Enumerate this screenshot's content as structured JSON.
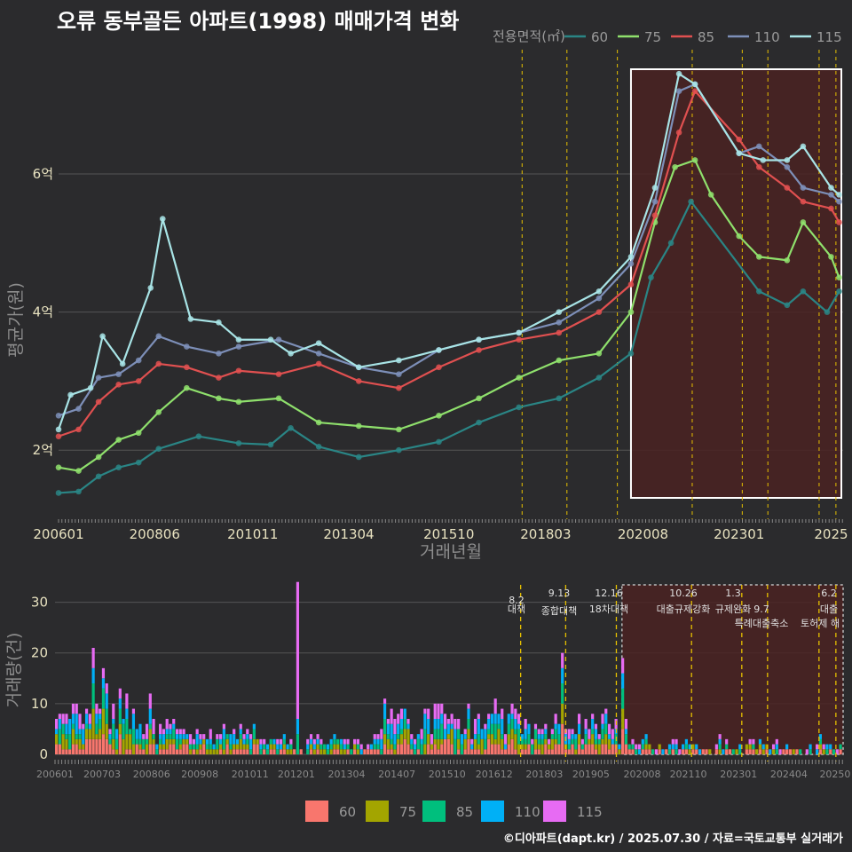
{
  "title": "오류 동부골든 아파트(1998) 매매가격 변화",
  "footer": "©디아파트(dapt.kr) / 2025.07.30 / 자료=국토교통부 실거래가",
  "colors": {
    "s60": "#2a8585",
    "s75": "#8fe06c",
    "s85": "#e05050",
    "s110": "#7d8fb8",
    "s115": "#a8e4e6",
    "b60": "#f8766d",
    "b75": "#a3a500",
    "b85": "#00bf7d",
    "b110": "#00b0f6",
    "b115": "#e76bf3",
    "policy": "#e6c000",
    "highlight": "#4a2222"
  },
  "chart_data": [
    {
      "type": "line",
      "xlabel": "거래년월",
      "ylabel": "평균가(원)",
      "x_ticks": [
        "200601",
        "200806",
        "201011",
        "201304",
        "201510",
        "201803",
        "202008",
        "202301",
        "2025"
      ],
      "y_ticks": [
        {
          "value": 2,
          "label": "2억"
        },
        {
          "value": 4,
          "label": "4억"
        },
        {
          "value": 6,
          "label": "6억"
        }
      ],
      "ylim": [
        1.0,
        7.8
      ],
      "legend_title": "전용면적(㎡)",
      "legend_placement": "top",
      "series": [
        {
          "name": "60",
          "points": [
            [
              2006.0,
              1.38
            ],
            [
              2006.5,
              1.4
            ],
            [
              2007.0,
              1.62
            ],
            [
              2007.5,
              1.75
            ],
            [
              2008.0,
              1.82
            ],
            [
              2008.5,
              2.02
            ],
            [
              2009.5,
              2.2
            ],
            [
              2010.5,
              2.1
            ],
            [
              2011.3,
              2.08
            ],
            [
              2011.8,
              2.32
            ],
            [
              2012.5,
              2.05
            ],
            [
              2013.5,
              1.9
            ],
            [
              2014.5,
              2.0
            ],
            [
              2015.5,
              2.12
            ],
            [
              2016.5,
              2.4
            ],
            [
              2017.5,
              2.62
            ],
            [
              2018.5,
              2.75
            ],
            [
              2019.5,
              3.05
            ],
            [
              2020.3,
              3.4
            ],
            [
              2020.8,
              4.5
            ],
            [
              2021.3,
              5.0
            ],
            [
              2021.8,
              5.6
            ],
            [
              2023.5,
              4.3
            ],
            [
              2024.2,
              4.1
            ],
            [
              2024.6,
              4.3
            ],
            [
              2025.2,
              4.0
            ],
            [
              2025.5,
              4.3
            ]
          ]
        },
        {
          "name": "75",
          "points": [
            [
              2006.0,
              1.75
            ],
            [
              2006.5,
              1.7
            ],
            [
              2007.0,
              1.9
            ],
            [
              2007.5,
              2.15
            ],
            [
              2008.0,
              2.25
            ],
            [
              2008.5,
              2.55
            ],
            [
              2009.2,
              2.9
            ],
            [
              2010.0,
              2.75
            ],
            [
              2010.5,
              2.7
            ],
            [
              2011.5,
              2.75
            ],
            [
              2012.5,
              2.4
            ],
            [
              2013.5,
              2.35
            ],
            [
              2014.5,
              2.3
            ],
            [
              2015.5,
              2.5
            ],
            [
              2016.5,
              2.75
            ],
            [
              2017.5,
              3.05
            ],
            [
              2018.5,
              3.3
            ],
            [
              2019.5,
              3.4
            ],
            [
              2020.3,
              4.0
            ],
            [
              2020.9,
              5.3
            ],
            [
              2021.4,
              6.1
            ],
            [
              2021.9,
              6.2
            ],
            [
              2022.3,
              5.7
            ],
            [
              2023.0,
              5.1
            ],
            [
              2023.5,
              4.8
            ],
            [
              2024.2,
              4.75
            ],
            [
              2024.6,
              5.3
            ],
            [
              2025.3,
              4.8
            ],
            [
              2025.5,
              4.5
            ]
          ]
        },
        {
          "name": "85",
          "points": [
            [
              2006.0,
              2.2
            ],
            [
              2006.5,
              2.3
            ],
            [
              2007.0,
              2.7
            ],
            [
              2007.5,
              2.95
            ],
            [
              2008.0,
              3.0
            ],
            [
              2008.5,
              3.25
            ],
            [
              2009.2,
              3.2
            ],
            [
              2010.0,
              3.05
            ],
            [
              2010.5,
              3.15
            ],
            [
              2011.5,
              3.1
            ],
            [
              2012.5,
              3.25
            ],
            [
              2013.5,
              3.0
            ],
            [
              2014.5,
              2.9
            ],
            [
              2015.5,
              3.2
            ],
            [
              2016.5,
              3.45
            ],
            [
              2017.5,
              3.6
            ],
            [
              2018.5,
              3.7
            ],
            [
              2019.5,
              4.0
            ],
            [
              2020.3,
              4.4
            ],
            [
              2020.9,
              5.4
            ],
            [
              2021.5,
              6.6
            ],
            [
              2021.9,
              7.2
            ],
            [
              2023.0,
              6.5
            ],
            [
              2023.5,
              6.1
            ],
            [
              2024.2,
              5.8
            ],
            [
              2024.6,
              5.6
            ],
            [
              2025.3,
              5.5
            ],
            [
              2025.5,
              5.3
            ]
          ]
        },
        {
          "name": "110",
          "points": [
            [
              2006.0,
              2.5
            ],
            [
              2006.5,
              2.6
            ],
            [
              2007.0,
              3.05
            ],
            [
              2007.5,
              3.1
            ],
            [
              2008.0,
              3.3
            ],
            [
              2008.5,
              3.65
            ],
            [
              2009.2,
              3.5
            ],
            [
              2010.0,
              3.4
            ],
            [
              2010.5,
              3.5
            ],
            [
              2011.5,
              3.6
            ],
            [
              2012.5,
              3.4
            ],
            [
              2013.5,
              3.2
            ],
            [
              2014.5,
              3.1
            ],
            [
              2015.5,
              3.45
            ],
            [
              2016.5,
              3.6
            ],
            [
              2017.5,
              3.7
            ],
            [
              2018.5,
              3.85
            ],
            [
              2019.5,
              4.2
            ],
            [
              2020.3,
              4.7
            ],
            [
              2020.9,
              5.6
            ],
            [
              2021.5,
              7.2
            ],
            [
              2021.9,
              7.3
            ],
            [
              2023.0,
              6.3
            ],
            [
              2023.5,
              6.4
            ],
            [
              2024.2,
              6.1
            ],
            [
              2024.6,
              5.8
            ],
            [
              2025.3,
              5.7
            ],
            [
              2025.5,
              5.6
            ]
          ]
        },
        {
          "name": "115",
          "points": [
            [
              2006.0,
              2.3
            ],
            [
              2006.3,
              2.8
            ],
            [
              2006.8,
              2.9
            ],
            [
              2007.1,
              3.65
            ],
            [
              2007.6,
              3.25
            ],
            [
              2008.3,
              4.35
            ],
            [
              2008.6,
              5.35
            ],
            [
              2009.3,
              3.9
            ],
            [
              2010.0,
              3.85
            ],
            [
              2010.5,
              3.6
            ],
            [
              2011.3,
              3.6
            ],
            [
              2011.8,
              3.4
            ],
            [
              2012.5,
              3.55
            ],
            [
              2013.5,
              3.2
            ],
            [
              2014.5,
              3.3
            ],
            [
              2015.5,
              3.45
            ],
            [
              2016.5,
              3.6
            ],
            [
              2017.5,
              3.7
            ],
            [
              2018.5,
              4.0
            ],
            [
              2019.5,
              4.3
            ],
            [
              2020.3,
              4.8
            ],
            [
              2020.9,
              5.8
            ],
            [
              2021.5,
              7.45
            ],
            [
              2021.9,
              7.3
            ],
            [
              2023.0,
              6.3
            ],
            [
              2023.6,
              6.2
            ],
            [
              2024.2,
              6.2
            ],
            [
              2024.6,
              6.4
            ],
            [
              2025.3,
              5.8
            ],
            [
              2025.5,
              5.7
            ]
          ]
        }
      ]
    },
    {
      "type": "bar",
      "xlabel": "",
      "ylabel": "거래량(건)",
      "x_ticks": [
        "200601",
        "200703",
        "200806",
        "200908",
        "201011",
        "201201",
        "201304",
        "201407",
        "201510",
        "201612",
        "201803",
        "201905",
        "202008",
        "202110",
        "202301",
        "202404",
        "20250"
      ],
      "y_ticks": [
        0,
        10,
        20,
        30
      ],
      "ylim": [
        0,
        35
      ],
      "legend_placement": "bottom",
      "series_names": [
        "60",
        "75",
        "85",
        "110",
        "115"
      ],
      "highlight_peaks": [
        {
          "x": 2006.9,
          "values": [
            3,
            6,
            5,
            3,
            4
          ]
        },
        {
          "x": 2007.2,
          "values": [
            4,
            5,
            4,
            2,
            2
          ]
        },
        {
          "x": 2012.0,
          "values": [
            0,
            0,
            4,
            3,
            27
          ]
        },
        {
          "x": 2018.6,
          "values": [
            6,
            4,
            4,
            3,
            3
          ]
        },
        {
          "x": 2020.1,
          "values": [
            5,
            4,
            4,
            3,
            3
          ]
        }
      ]
    }
  ],
  "policies": [
    {
      "x": 2017.58,
      "date": "8.2",
      "label": "대책"
    },
    {
      "x": 2018.7,
      "date": "9.13",
      "label": "종합대책"
    },
    {
      "x": 2019.96,
      "date": "12.16",
      "label": "18차대책"
    },
    {
      "x": 2021.83,
      "date": "10.26",
      "label": "대출규제강화"
    },
    {
      "x": 2023.08,
      "date": "1.3",
      "label": "규제완화"
    },
    {
      "x": 2023.72,
      "date": "9.7",
      "label": "특례대출축소"
    },
    {
      "x": 2025.0,
      "date": "",
      "label": "토허제 해"
    },
    {
      "x": 2025.42,
      "date": "6.2",
      "label": "대출"
    }
  ]
}
